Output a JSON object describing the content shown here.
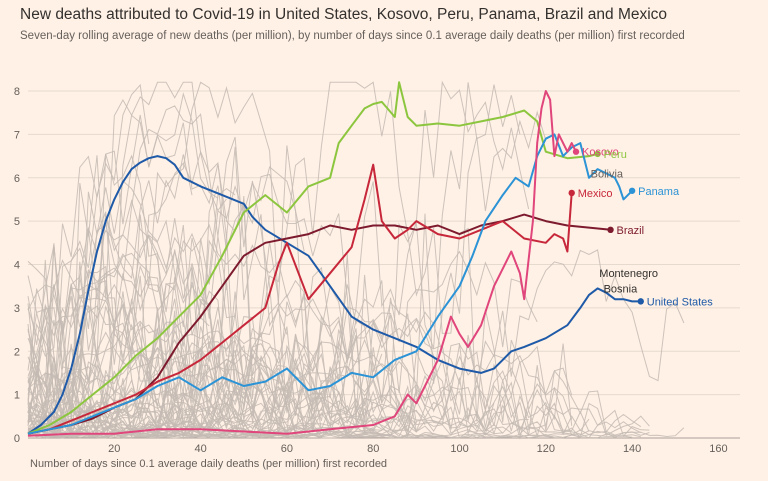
{
  "chart_data": {
    "type": "line",
    "title": "New deaths attributed to Covid-19 in United States, Kosovo, Peru, Panama, Brazil and Mexico",
    "subtitle": "Seven-day rolling average of new deaths (per million), by number of days since 0.1 average daily deaths (per million) first recorded",
    "xlabel": "Number of days since 0.1 average daily deaths (per million) first recorded",
    "ylabel": "",
    "xlim": [
      0,
      165
    ],
    "ylim": [
      0,
      8.3
    ],
    "xticks": [
      20,
      40,
      60,
      80,
      100,
      120,
      140,
      160
    ],
    "yticks": [
      0,
      1,
      2,
      3,
      4,
      5,
      6,
      7,
      8
    ],
    "background_series_color": "#c4bbb4",
    "series": [
      {
        "name": "United States",
        "color": "#1e5aa8",
        "label": "United States",
        "label_color": "#1e5aa8",
        "x": [
          0,
          3,
          6,
          8,
          10,
          12,
          14,
          16,
          18,
          20,
          22,
          24,
          26,
          28,
          30,
          32,
          34,
          36,
          40,
          45,
          50,
          52,
          55,
          60,
          65,
          70,
          75,
          80,
          85,
          90,
          95,
          100,
          105,
          108,
          110,
          112,
          115,
          120,
          125,
          128,
          130,
          132,
          134,
          136,
          138,
          140,
          142
        ],
        "y": [
          0.1,
          0.3,
          0.6,
          1.0,
          1.6,
          2.4,
          3.4,
          4.3,
          5.0,
          5.5,
          5.9,
          6.2,
          6.35,
          6.45,
          6.5,
          6.45,
          6.3,
          6.0,
          5.8,
          5.6,
          5.4,
          5.1,
          4.8,
          4.5,
          4.2,
          3.5,
          2.8,
          2.5,
          2.3,
          2.1,
          1.8,
          1.6,
          1.5,
          1.6,
          1.8,
          2.0,
          2.1,
          2.3,
          2.6,
          3.0,
          3.3,
          3.45,
          3.35,
          3.2,
          3.2,
          3.15,
          3.15
        ]
      },
      {
        "name": "Brazil",
        "color": "#7d1a2e",
        "label": "Brazil",
        "label_color": "#7d1a2e",
        "x": [
          0,
          5,
          10,
          15,
          20,
          25,
          30,
          35,
          40,
          45,
          50,
          55,
          60,
          65,
          70,
          75,
          80,
          85,
          90,
          95,
          100,
          105,
          110,
          115,
          120,
          125,
          130,
          135
        ],
        "y": [
          0.1,
          0.2,
          0.3,
          0.45,
          0.7,
          0.9,
          1.4,
          2.2,
          2.8,
          3.5,
          4.2,
          4.5,
          4.6,
          4.7,
          4.9,
          4.8,
          4.9,
          4.9,
          4.8,
          4.9,
          4.7,
          4.9,
          5.0,
          5.15,
          5.0,
          4.9,
          4.85,
          4.8
        ]
      },
      {
        "name": "Mexico",
        "color": "#c7273a",
        "label": "Mexico",
        "label_color": "#c7273a",
        "x": [
          0,
          5,
          10,
          15,
          20,
          25,
          30,
          35,
          40,
          45,
          50,
          55,
          58,
          60,
          65,
          70,
          75,
          78,
          80,
          82,
          85,
          88,
          90,
          95,
          100,
          105,
          110,
          115,
          120,
          122,
          124,
          125,
          126
        ],
        "y": [
          0.1,
          0.2,
          0.4,
          0.6,
          0.8,
          1.0,
          1.3,
          1.5,
          1.8,
          2.2,
          2.6,
          3.0,
          4.0,
          4.5,
          3.2,
          3.8,
          4.4,
          5.5,
          6.3,
          5.0,
          4.6,
          4.8,
          5.0,
          4.7,
          4.6,
          4.8,
          5.0,
          4.6,
          4.5,
          4.7,
          4.6,
          4.3,
          5.65
        ]
      },
      {
        "name": "Peru",
        "color": "#8cc63f",
        "label": "Peru",
        "label_color": "#8cc63f",
        "x": [
          0,
          5,
          10,
          15,
          20,
          25,
          30,
          35,
          40,
          45,
          50,
          55,
          60,
          65,
          70,
          72,
          75,
          78,
          80,
          82,
          85,
          86,
          88,
          90,
          95,
          100,
          105,
          110,
          115,
          118,
          120,
          125,
          130,
          132
        ],
        "y": [
          0.1,
          0.3,
          0.6,
          1.0,
          1.4,
          1.9,
          2.3,
          2.8,
          3.3,
          4.2,
          5.2,
          5.6,
          5.2,
          5.8,
          6.0,
          6.8,
          7.2,
          7.6,
          7.7,
          7.75,
          7.4,
          8.2,
          7.4,
          7.2,
          7.25,
          7.2,
          7.3,
          7.4,
          7.55,
          7.3,
          6.6,
          6.45,
          6.5,
          6.55
        ]
      },
      {
        "name": "Panama",
        "color": "#2b93d6",
        "label": "Panama",
        "label_color": "#2b93d6",
        "x": [
          0,
          5,
          10,
          15,
          20,
          25,
          30,
          35,
          40,
          45,
          50,
          55,
          60,
          65,
          70,
          75,
          80,
          85,
          90,
          95,
          100,
          103,
          106,
          110,
          113,
          116,
          118,
          120,
          122,
          124,
          126,
          128,
          130,
          132,
          134,
          136,
          137,
          138,
          140
        ],
        "y": [
          0.1,
          0.2,
          0.3,
          0.5,
          0.7,
          0.9,
          1.2,
          1.4,
          1.1,
          1.4,
          1.2,
          1.3,
          1.6,
          1.1,
          1.2,
          1.5,
          1.4,
          1.8,
          2.0,
          2.8,
          3.5,
          4.2,
          5.0,
          5.6,
          6.0,
          5.8,
          6.5,
          6.9,
          7.0,
          6.5,
          6.7,
          6.8,
          6.0,
          6.2,
          6.1,
          6.0,
          5.8,
          5.5,
          5.7
        ]
      },
      {
        "name": "Kosovo",
        "color": "#e0457b",
        "label": "Kosovo",
        "label_color": "#e0457b",
        "x": [
          0,
          10,
          20,
          30,
          40,
          50,
          60,
          70,
          80,
          85,
          88,
          90,
          92,
          95,
          98,
          100,
          102,
          105,
          108,
          110,
          112,
          114,
          115,
          117,
          118,
          119,
          120,
          121,
          122,
          123,
          124,
          125,
          126,
          127
        ],
        "y": [
          0.05,
          0.1,
          0.1,
          0.2,
          0.2,
          0.15,
          0.1,
          0.2,
          0.3,
          0.5,
          1.0,
          0.8,
          1.2,
          1.8,
          2.8,
          2.4,
          2.1,
          2.6,
          3.5,
          3.9,
          4.3,
          3.8,
          3.2,
          5.0,
          6.8,
          7.6,
          8.0,
          7.8,
          6.5,
          7.0,
          6.8,
          6.6,
          6.8,
          6.6
        ]
      }
    ],
    "annotations": [
      {
        "text": "Kosovo",
        "color": "#e0457b",
        "x": 127,
        "y": 6.6
      },
      {
        "text": "Peru",
        "color": "#8cc63f",
        "x": 132,
        "y": 6.55
      },
      {
        "text": "Bolivia",
        "color": "#66605c",
        "x": 129,
        "y": 6.1
      },
      {
        "text": "Mexico",
        "color": "#c7273a",
        "x": 126,
        "y": 5.65
      },
      {
        "text": "Panama",
        "color": "#2b93d6",
        "x": 140,
        "y": 5.7
      },
      {
        "text": "Brazil",
        "color": "#7d1a2e",
        "x": 135,
        "y": 4.8
      },
      {
        "text": "Montenegro",
        "color": "#33302e",
        "x": 131,
        "y": 3.8
      },
      {
        "text": "Bosnia",
        "color": "#33302e",
        "x": 132,
        "y": 3.45
      },
      {
        "text": "United States",
        "color": "#1e5aa8",
        "x": 142,
        "y": 3.15
      }
    ]
  }
}
